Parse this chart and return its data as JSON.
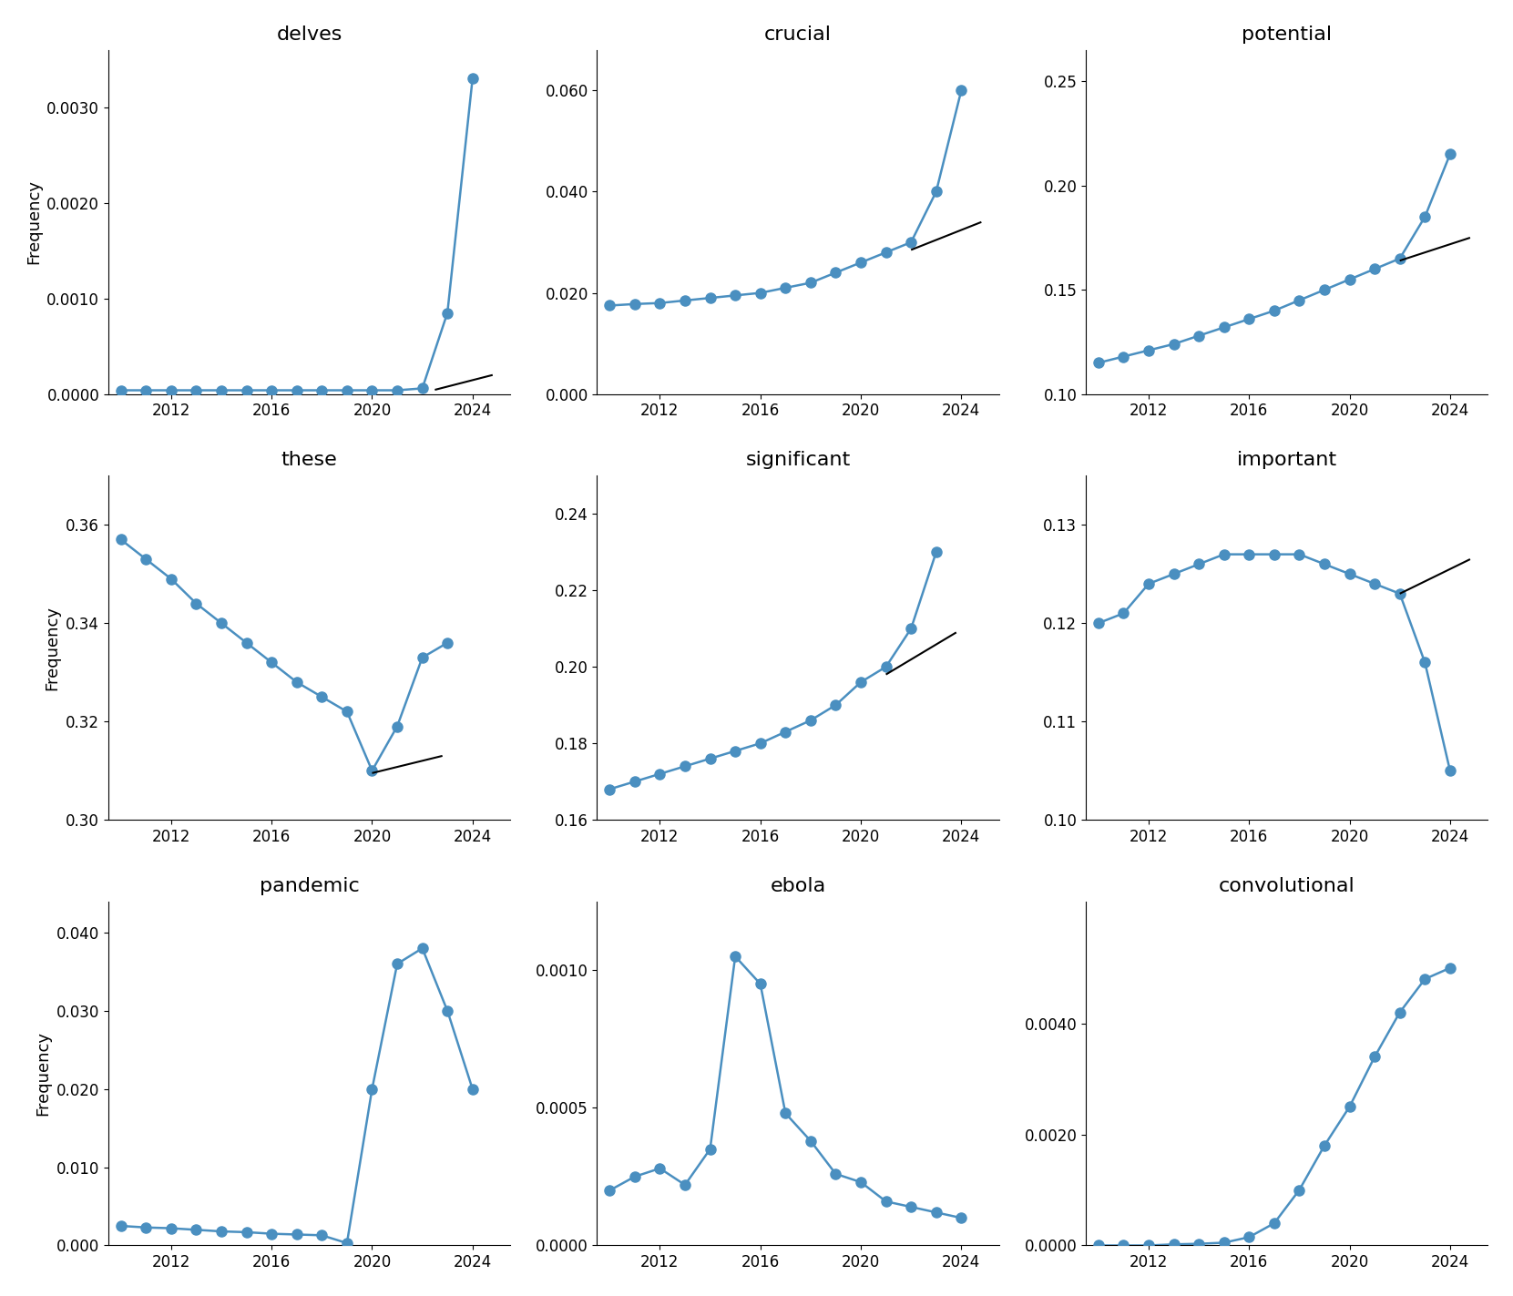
{
  "years": [
    2010,
    2011,
    2012,
    2013,
    2014,
    2015,
    2016,
    2017,
    2018,
    2019,
    2020,
    2021,
    2022,
    2023,
    2024
  ],
  "plots": [
    {
      "title": "delves",
      "values": [
        4e-05,
        4e-05,
        4e-05,
        4e-05,
        4e-05,
        4e-05,
        4e-05,
        4e-05,
        4e-05,
        4e-05,
        4e-05,
        4e-05,
        6e-05,
        0.00085,
        0.0033
      ],
      "ylim": [
        0.0,
        0.0036
      ],
      "yticks": [
        0.0,
        0.001,
        0.002,
        0.003
      ],
      "trend_x": [
        2022.5,
        2024.8
      ],
      "trend_y": [
        4.5e-05,
        0.0002
      ],
      "show_trend": true
    },
    {
      "title": "crucial",
      "values": [
        0.0175,
        0.0178,
        0.018,
        0.0185,
        0.019,
        0.0195,
        0.02,
        0.021,
        0.022,
        0.024,
        0.026,
        0.028,
        0.03,
        0.04,
        0.06
      ],
      "ylim": [
        0.0,
        0.068
      ],
      "yticks": [
        0.0,
        0.02,
        0.04,
        0.06
      ],
      "trend_x": [
        2022.0,
        2024.8
      ],
      "trend_y": [
        0.0285,
        0.034
      ],
      "show_trend": true
    },
    {
      "title": "potential",
      "values": [
        0.115,
        0.118,
        0.121,
        0.124,
        0.128,
        0.132,
        0.136,
        0.14,
        0.145,
        0.15,
        0.155,
        0.16,
        0.165,
        0.185,
        0.215
      ],
      "ylim": [
        0.1,
        0.265
      ],
      "yticks": [
        0.1,
        0.15,
        0.2,
        0.25
      ],
      "trend_x": [
        2022.0,
        2024.8
      ],
      "trend_y": [
        0.164,
        0.175
      ],
      "show_trend": true
    },
    {
      "title": "these",
      "values": [
        0.357,
        0.353,
        0.349,
        0.344,
        0.34,
        0.336,
        0.332,
        0.328,
        0.325,
        0.322,
        0.31,
        0.319,
        0.333,
        0.336,
        null
      ],
      "ylim": [
        0.3,
        0.37
      ],
      "yticks": [
        0.3,
        0.32,
        0.34,
        0.36
      ],
      "trend_x": [
        2020.0,
        2022.8
      ],
      "trend_y": [
        0.3095,
        0.313
      ],
      "show_trend": true
    },
    {
      "title": "significant",
      "values": [
        0.168,
        0.17,
        0.172,
        0.174,
        0.176,
        0.178,
        0.18,
        0.183,
        0.186,
        0.19,
        0.196,
        0.2,
        0.21,
        0.23,
        null
      ],
      "ylim": [
        0.16,
        0.25
      ],
      "yticks": [
        0.16,
        0.18,
        0.2,
        0.22,
        0.24
      ],
      "trend_x": [
        2021.0,
        2023.8
      ],
      "trend_y": [
        0.198,
        0.209
      ],
      "show_trend": true
    },
    {
      "title": "important",
      "values": [
        0.12,
        0.121,
        0.124,
        0.125,
        0.126,
        0.127,
        0.127,
        0.127,
        0.127,
        0.126,
        0.125,
        0.124,
        0.123,
        0.116,
        0.105
      ],
      "ylim": [
        0.1,
        0.135
      ],
      "yticks": [
        0.1,
        0.11,
        0.12,
        0.13
      ],
      "trend_x": [
        2022.0,
        2024.8
      ],
      "trend_y": [
        0.123,
        0.1265
      ],
      "show_trend": true
    },
    {
      "title": "pandemic",
      "values": [
        0.0025,
        0.0023,
        0.0022,
        0.002,
        0.0018,
        0.0017,
        0.0015,
        0.0014,
        0.0013,
        0.0003,
        0.02,
        0.036,
        0.038,
        0.03,
        0.02
      ],
      "ylim": [
        0.0,
        0.044
      ],
      "yticks": [
        0.0,
        0.01,
        0.02,
        0.03,
        0.04
      ],
      "trend_x": null,
      "trend_y": null,
      "show_trend": false
    },
    {
      "title": "ebola",
      "values": [
        0.0002,
        0.00025,
        0.00028,
        0.00022,
        0.00035,
        0.00105,
        0.00095,
        0.00048,
        0.00038,
        0.00026,
        0.00023,
        0.00016,
        0.00014,
        0.00012,
        0.0001
      ],
      "ylim": [
        0.0,
        0.00125
      ],
      "yticks": [
        0.0,
        0.0005,
        0.001
      ],
      "trend_x": null,
      "trend_y": null,
      "show_trend": false
    },
    {
      "title": "convolutional",
      "values": [
        0.0,
        0.0,
        0.0,
        2e-05,
        3e-05,
        5e-05,
        0.00015,
        0.0004,
        0.001,
        0.0018,
        0.0025,
        0.0034,
        0.0042,
        0.0048,
        0.005
      ],
      "ylim": [
        0.0,
        0.0062
      ],
      "yticks": [
        0.0,
        0.002,
        0.004
      ],
      "trend_x": null,
      "trend_y": null,
      "show_trend": false
    }
  ],
  "line_color": "#4a8fc0",
  "marker_color": "#4a8fc0",
  "trend_color": "black",
  "background_color": "#ffffff",
  "freq_label": "Frequency",
  "title_fontsize": 16,
  "label_fontsize": 13,
  "tick_fontsize": 12,
  "marker_size": 8,
  "line_width": 1.8,
  "trend_linewidth": 1.5,
  "xticks": [
    2012,
    2016,
    2020,
    2024
  ],
  "xlim": [
    2009.5,
    2025.5
  ]
}
